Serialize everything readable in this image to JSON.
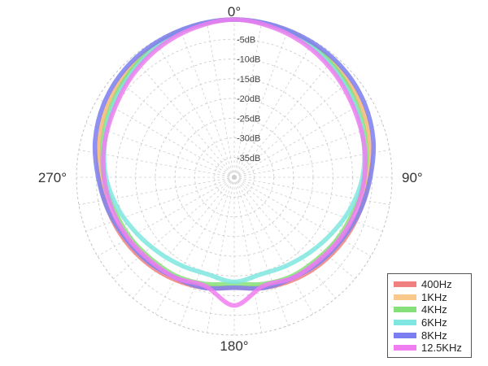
{
  "chart_data": {
    "type": "polar-line",
    "radial_axis": {
      "unit": "dB",
      "ticks": [
        {
          "value": -5,
          "label": "-5dB"
        },
        {
          "value": -10,
          "label": "-10dB"
        },
        {
          "value": -15,
          "label": "-15dB"
        },
        {
          "value": -20,
          "label": "-20dB"
        },
        {
          "value": -25,
          "label": "-25dB"
        },
        {
          "value": -30,
          "label": "-30dB"
        },
        {
          "value": -35,
          "label": "-35dB"
        }
      ],
      "range": [
        -40,
        0
      ]
    },
    "angular_axis": {
      "labels": [
        {
          "angle": 0,
          "text": "0°"
        },
        {
          "angle": 90,
          "text": "90°"
        },
        {
          "angle": 180,
          "text": "180°"
        },
        {
          "angle": 270,
          "text": "270°"
        }
      ],
      "spoke_step_deg": 10,
      "direction": "clockwise",
      "zero_at": "top"
    },
    "grid": true,
    "legend_position": "bottom-right",
    "angles": [
      0,
      15,
      30,
      45,
      60,
      75,
      90,
      105,
      120,
      135,
      150,
      165,
      180,
      195,
      210,
      225,
      240,
      255,
      270,
      285,
      300,
      315,
      330,
      345
    ],
    "series": [
      {
        "name": "400Hz",
        "color": "#f08080",
        "values": [
          0,
          -0.5,
          -1,
          -2,
          -3,
          -4.5,
          -6,
          -7,
          -8,
          -9,
          -10,
          -11,
          -12,
          -11,
          -10,
          -9,
          -8,
          -7,
          -6,
          -4.5,
          -3,
          -2,
          -1,
          -0.5
        ]
      },
      {
        "name": "1KHz",
        "color": "#f8c98a",
        "values": [
          0,
          -0.3,
          -1,
          -1.8,
          -3,
          -4.5,
          -6,
          -7,
          -8.5,
          -9.5,
          -10.5,
          -11.5,
          -12,
          -11.5,
          -10.5,
          -9.5,
          -8.5,
          -7,
          -6,
          -4.5,
          -3,
          -1.8,
          -1,
          -0.3
        ]
      },
      {
        "name": "4KHz",
        "color": "#86e07a",
        "values": [
          0,
          -0.5,
          -1.2,
          -2.5,
          -4,
          -5.5,
          -7,
          -8.5,
          -9.5,
          -10.5,
          -11,
          -12,
          -13,
          -12,
          -11,
          -10.5,
          -9.5,
          -8.5,
          -7,
          -5.5,
          -4,
          -2.5,
          -1.2,
          -0.5
        ]
      },
      {
        "name": "6KHz",
        "color": "#7fe6e1",
        "values": [
          0,
          -0.5,
          -1.5,
          -3,
          -4.5,
          -6,
          -7.5,
          -9.5,
          -11.5,
          -13,
          -14,
          -14.5,
          -13.5,
          -14.5,
          -14,
          -13,
          -11.5,
          -9.5,
          -7.5,
          -6,
          -4.5,
          -3,
          -1.5,
          -0.5
        ]
      },
      {
        "name": "8KHz",
        "color": "#7b7ef0",
        "values": [
          0,
          -0.2,
          -0.5,
          -1,
          -2,
          -3.5,
          -5.5,
          -7,
          -8.5,
          -9.5,
          -10.5,
          -11,
          -12,
          -11,
          -10.5,
          -9.5,
          -8.5,
          -7,
          -5.5,
          -3.5,
          -2,
          -1,
          -0.5,
          -0.2
        ]
      },
      {
        "name": "12.5KHz",
        "color": "#f07ef0",
        "values": [
          0,
          -0.8,
          -2,
          -3.5,
          -5,
          -6,
          -7,
          -8,
          -9,
          -10,
          -10.5,
          -11.5,
          -7.5,
          -11.5,
          -10.5,
          -10,
          -9,
          -8,
          -7,
          -6,
          -5,
          -3.5,
          -2,
          -0.8
        ]
      }
    ]
  }
}
